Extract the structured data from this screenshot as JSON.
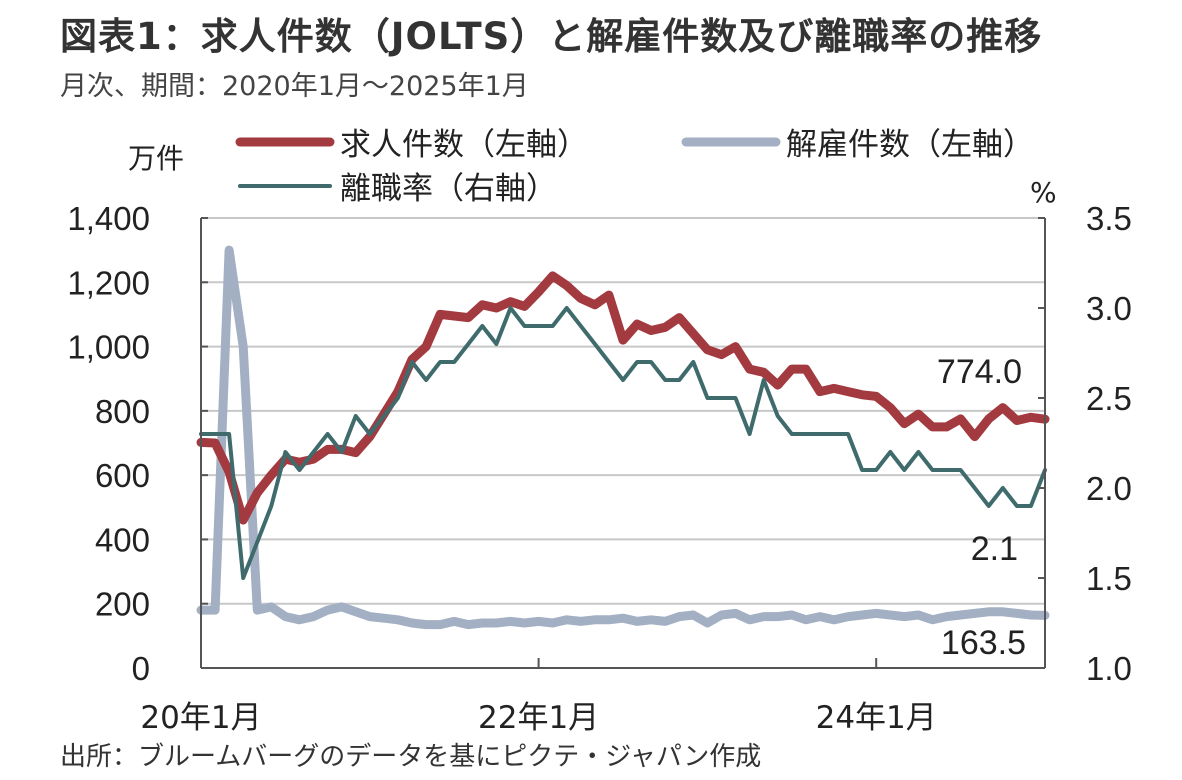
{
  "title": "図表1：求人件数（JOLTS）と解雇件数及び離職率の推移",
  "subtitle": "月次、期間：2020年1月～2025年1月",
  "source": "出所：ブルームバーグのデータを基にピクテ・ジャパン作成",
  "chart_data": {
    "type": "line",
    "left_unit": "万件",
    "right_unit": "%",
    "left_axis": {
      "ylim": [
        0,
        1400
      ],
      "ticks": [
        0,
        200,
        400,
        600,
        800,
        1000,
        1200,
        1400
      ],
      "tick_labels": [
        "0",
        "200",
        "400",
        "600",
        "800",
        "1,000",
        "1,200",
        "1,400"
      ]
    },
    "right_axis": {
      "ylim": [
        1.0,
        3.5
      ],
      "ticks": [
        1.0,
        1.5,
        2.0,
        2.5,
        3.0,
        3.5
      ],
      "tick_labels": [
        "1.0",
        "1.5",
        "2.0",
        "2.5",
        "3.0",
        "3.5"
      ]
    },
    "x_start": "2020-01",
    "x_end": "2025-01",
    "x_ticks": [
      {
        "month": "2020-01",
        "label": "20年1月"
      },
      {
        "month": "2022-01",
        "label": "22年1月"
      },
      {
        "month": "2024-01",
        "label": "24年1月"
      }
    ],
    "grid": true,
    "legend": "top",
    "series": [
      {
        "name": "求人件数（左軸）",
        "axis": "left",
        "color": "#a33a3f",
        "width": 9,
        "values": [
          702,
          700,
          610,
          460,
          545,
          600,
          650,
          640,
          650,
          680,
          680,
          670,
          720,
          790,
          860,
          960,
          1000,
          1100,
          1095,
          1090,
          1130,
          1120,
          1140,
          1125,
          1170,
          1220,
          1190,
          1150,
          1130,
          1160,
          1020,
          1070,
          1050,
          1060,
          1090,
          1040,
          990,
          975,
          1000,
          930,
          920,
          880,
          930,
          930,
          860,
          870,
          860,
          850,
          845,
          810,
          760,
          790,
          750,
          750,
          775,
          720,
          775,
          810,
          770,
          780,
          774
        ]
      },
      {
        "name": "解雇件数（左軸）",
        "axis": "left",
        "color": "#a3b0c3",
        "width": 9,
        "values": [
          180,
          180,
          1300,
          1000,
          180,
          190,
          160,
          150,
          160,
          180,
          190,
          175,
          160,
          155,
          150,
          140,
          135,
          135,
          145,
          135,
          140,
          140,
          145,
          140,
          145,
          140,
          150,
          145,
          150,
          150,
          155,
          145,
          150,
          145,
          160,
          165,
          140,
          165,
          170,
          150,
          160,
          160,
          165,
          150,
          160,
          150,
          160,
          165,
          170,
          165,
          160,
          165,
          150,
          160,
          165,
          170,
          175,
          175,
          170,
          165,
          163.5
        ]
      },
      {
        "name": "離職率（右軸）",
        "axis": "right",
        "color": "#3f6b6c",
        "width": 4,
        "values": [
          2.3,
          2.3,
          2.3,
          1.5,
          1.7,
          1.9,
          2.2,
          2.1,
          2.2,
          2.3,
          2.2,
          2.4,
          2.3,
          2.4,
          2.5,
          2.7,
          2.6,
          2.7,
          2.7,
          2.8,
          2.9,
          2.8,
          3.0,
          2.9,
          2.9,
          2.9,
          3.0,
          2.9,
          2.8,
          2.7,
          2.6,
          2.7,
          2.7,
          2.6,
          2.6,
          2.7,
          2.5,
          2.5,
          2.5,
          2.3,
          2.6,
          2.4,
          2.3,
          2.3,
          2.3,
          2.3,
          2.3,
          2.1,
          2.1,
          2.2,
          2.1,
          2.2,
          2.1,
          2.1,
          2.1,
          2.0,
          1.9,
          2.0,
          1.9,
          1.9,
          2.1
        ]
      }
    ],
    "annotations": [
      {
        "text": "774.0",
        "series": 0
      },
      {
        "text": "2.1",
        "series": 2
      },
      {
        "text": "163.5",
        "series": 1
      }
    ]
  }
}
